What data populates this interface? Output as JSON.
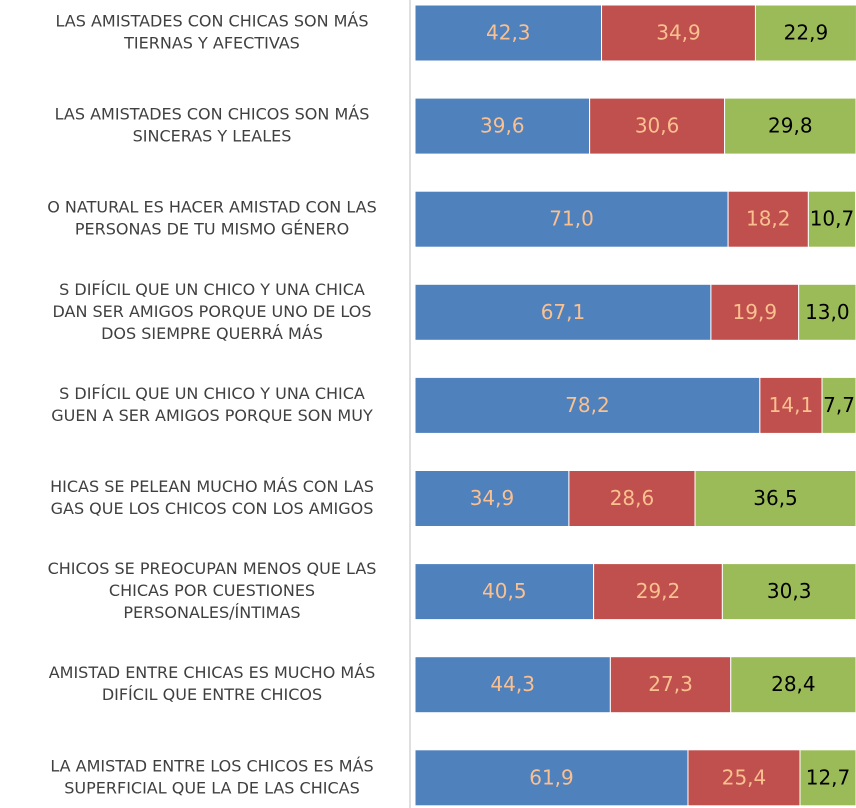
{
  "chart_data": {
    "type": "stacked-bar-horizontal",
    "categories": [
      [
        "LAS AMISTADES CON CHICAS SON MÁS",
        "TIERNAS Y AFECTIVAS"
      ],
      [
        "LAS AMISTADES CON CHICOS SON MÁS",
        "SINCERAS Y LEALES"
      ],
      [
        "O NATURAL ES HACER AMISTAD CON LAS",
        "PERSONAS DE TU MISMO GÉNERO"
      ],
      [
        "S DIFÍCIL QUE UN CHICO Y UNA CHICA",
        "DAN SER AMIGOS PORQUE UNO DE LOS",
        "DOS SIEMPRE QUERRÁ MÁS"
      ],
      [
        "S DIFÍCIL QUE UN CHICO Y UNA CHICA",
        "GUEN A SER AMIGOS PORQUE SON MUY"
      ],
      [
        "HICAS SE PELEAN MUCHO MÁS CON LAS",
        "GAS QUE LOS CHICOS CON LOS AMIGOS"
      ],
      [
        "CHICOS SE PREOCUPAN MENOS QUE LAS",
        "CHICAS POR CUESTIONES",
        "PERSONALES/ÍNTIMAS"
      ],
      [
        "AMISTAD ENTRE CHICAS ES MUCHO MÁS",
        "DIFÍCIL QUE ENTRE CHICOS"
      ],
      [
        "LA AMISTAD ENTRE LOS CHICOS ES MÁS",
        "SUPERFICIAL QUE LA DE LAS CHICAS"
      ]
    ],
    "series": [
      {
        "color": "#4f81bd",
        "label_color": "#fac090",
        "values": [
          42.3,
          39.6,
          71.0,
          67.1,
          78.2,
          34.9,
          40.5,
          44.3,
          61.9
        ],
        "value_labels": [
          "42,3",
          "39,6",
          "71,0",
          "67,1",
          "78,2",
          "34,9",
          "40,5",
          "44,3",
          "61,9"
        ]
      },
      {
        "color": "#c0504d",
        "label_color": "#fac090",
        "values": [
          34.9,
          30.6,
          18.2,
          19.9,
          14.1,
          28.6,
          29.2,
          27.3,
          25.4
        ],
        "value_labels": [
          "34,9",
          "30,6",
          "18,2",
          "19,9",
          "14,1",
          "28,6",
          "29,2",
          "27,3",
          "25,4"
        ]
      },
      {
        "color": "#9bbb59",
        "label_color": "#000000",
        "values": [
          22.9,
          29.8,
          10.7,
          13.0,
          7.7,
          36.5,
          30.3,
          28.4,
          12.7
        ],
        "value_labels": [
          "22,9",
          "29,8",
          "10,7",
          "13,0",
          "7,7",
          "36,5",
          "30,3",
          "28,4",
          "12,7"
        ]
      }
    ],
    "xlim": [
      0,
      100
    ]
  }
}
